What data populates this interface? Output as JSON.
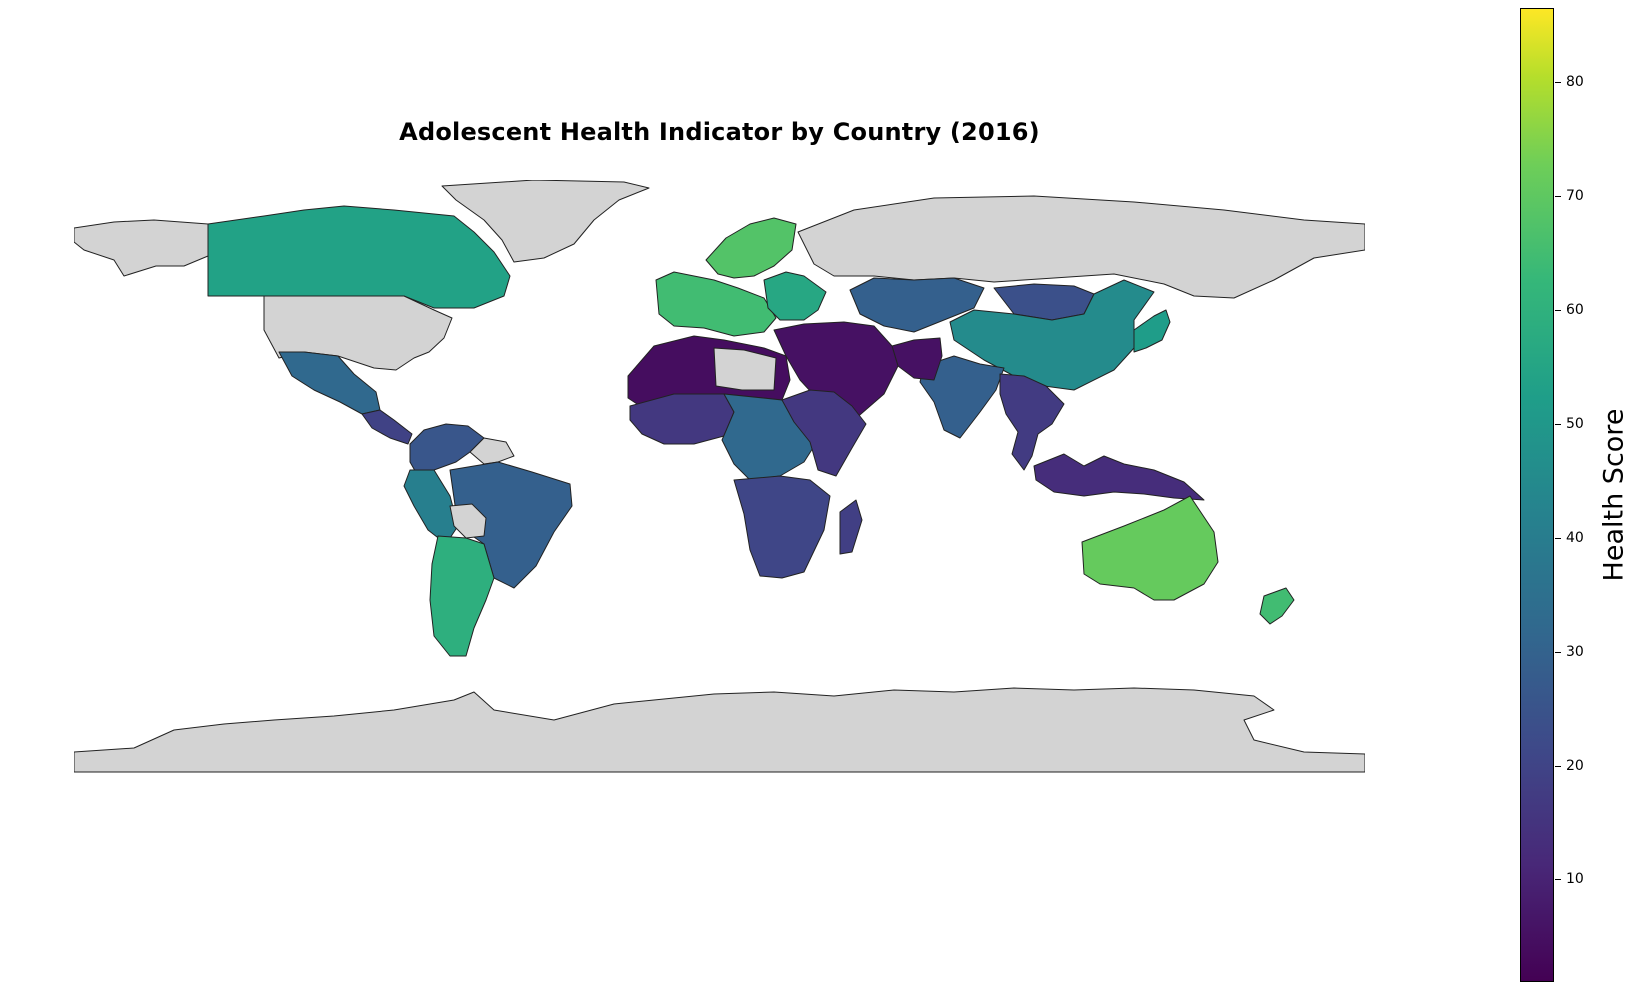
{
  "title": "Adolescent Health Indicator by Country (2016)",
  "colorbar": {
    "label": "Health Score",
    "ticks": [
      "10",
      "20",
      "30",
      "40",
      "50",
      "60",
      "70",
      "80"
    ],
    "range": [
      1,
      86.5
    ],
    "colormap": "viridis"
  },
  "colors": {
    "no_data": "#d3d3d3",
    "border": "#222222",
    "background": "#ffffff"
  },
  "map_data": {
    "type": "choropleth",
    "regions": [
      {
        "name": "Greenland",
        "value": null
      },
      {
        "name": "Alaska",
        "value": null
      },
      {
        "name": "Canada",
        "value": 50
      },
      {
        "name": "United States",
        "value": null
      },
      {
        "name": "Mexico",
        "value": 30
      },
      {
        "name": "Central America",
        "value": 18
      },
      {
        "name": "Colombia / Venezuela",
        "value": 24
      },
      {
        "name": "Guianas",
        "value": null
      },
      {
        "name": "Peru / Ecuador",
        "value": 38
      },
      {
        "name": "Brazil",
        "value": 27
      },
      {
        "name": "Bolivia",
        "value": null
      },
      {
        "name": "Chile / Argentina",
        "value": 55
      },
      {
        "name": "Western Europe",
        "value": 60
      },
      {
        "name": "Scandinavia",
        "value": 63
      },
      {
        "name": "Eastern Europe",
        "value": 52
      },
      {
        "name": "Russia",
        "value": null
      },
      {
        "name": "Kazakhstan",
        "value": 27
      },
      {
        "name": "Mongolia",
        "value": 22
      },
      {
        "name": "China",
        "value": 42
      },
      {
        "name": "Japan",
        "value": 48
      },
      {
        "name": "India",
        "value": 27
      },
      {
        "name": "Afghanistan / Pakistan",
        "value": 5
      },
      {
        "name": "Middle East",
        "value": 5
      },
      {
        "name": "North Africa",
        "value": 4
      },
      {
        "name": "Libya",
        "value": null
      },
      {
        "name": "West Africa",
        "value": 15
      },
      {
        "name": "Central Africa",
        "value": 30
      },
      {
        "name": "East Africa",
        "value": 15
      },
      {
        "name": "Southern Africa",
        "value": 19
      },
      {
        "name": "Madagascar",
        "value": 17
      },
      {
        "name": "Southeast Asia",
        "value": 16
      },
      {
        "name": "Indonesia / PNG",
        "value": 12
      },
      {
        "name": "Australia",
        "value": 66
      },
      {
        "name": "New Zealand",
        "value": 60
      },
      {
        "name": "Antarctica",
        "value": null
      }
    ]
  }
}
